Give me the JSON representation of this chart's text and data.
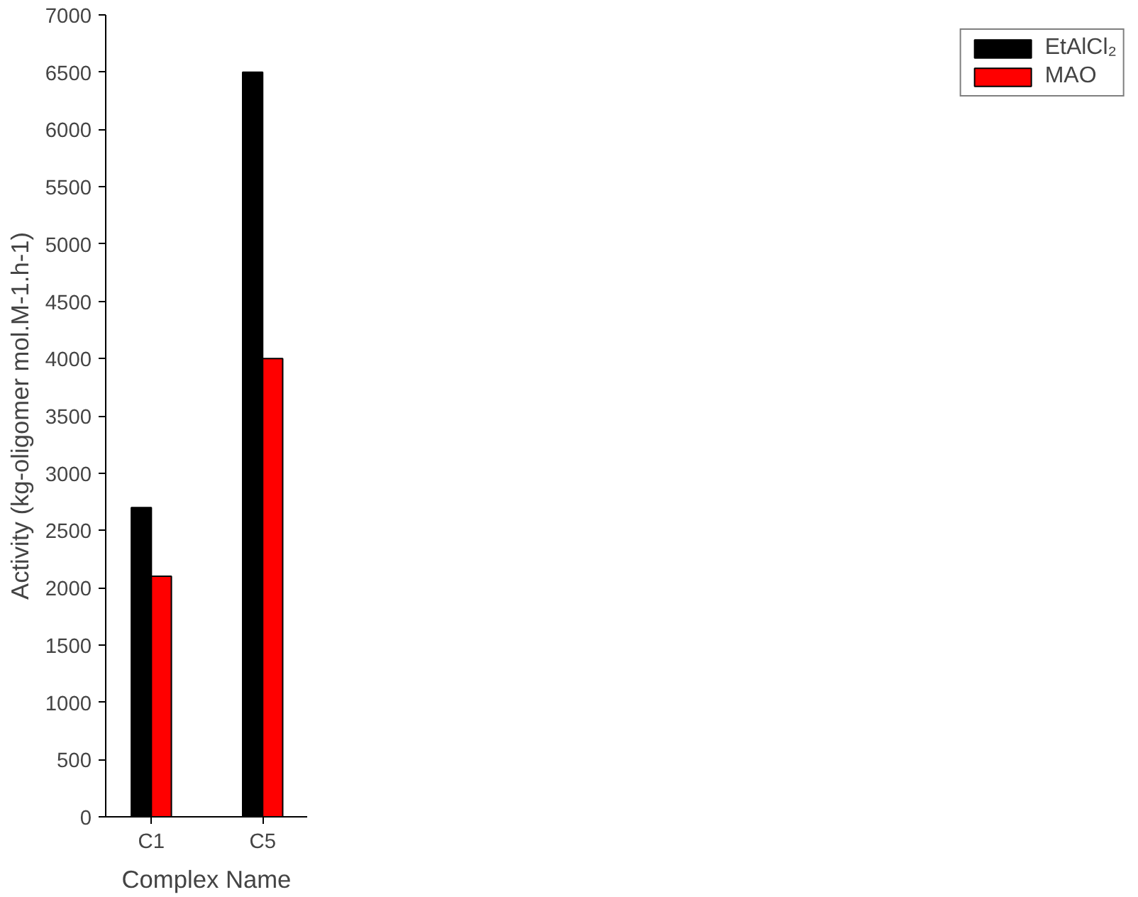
{
  "chart_data": {
    "type": "bar",
    "xlabel": "Complex Name",
    "ylabel": "Activity (kg-oligomer mol.M-1.h-1)",
    "categories": [
      "C1",
      "C5"
    ],
    "series": [
      {
        "name": "EtAlCl₂",
        "color": "#000000",
        "values": [
          2700,
          6500
        ]
      },
      {
        "name": "MAO",
        "color": "#ff0000",
        "values": [
          2100,
          4000
        ]
      }
    ],
    "ylim": [
      0,
      7000
    ],
    "yticks": [
      0,
      500,
      1000,
      1500,
      2000,
      2500,
      3000,
      3500,
      4000,
      4500,
      5000,
      5500,
      6000,
      6500,
      7000
    ],
    "grid": false,
    "legend": "top right"
  }
}
